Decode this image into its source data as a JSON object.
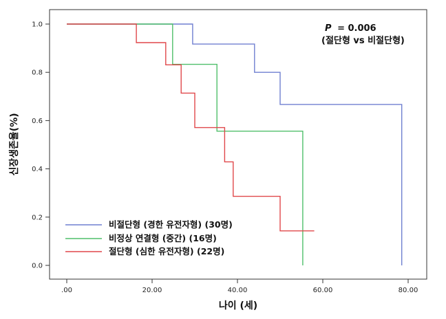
{
  "chart_data": {
    "type": "line",
    "step": true,
    "xlabel": "나이 (세)",
    "ylabel": "신장생존율(%)",
    "xlim": [
      0,
      80
    ],
    "ylim": [
      0,
      1.0
    ],
    "xticks": [
      0,
      20,
      40,
      60,
      80
    ],
    "xtick_labels": [
      ".00",
      "20.00",
      "40.00",
      "60.00",
      "80.00"
    ],
    "yticks": [
      0.0,
      0.2,
      0.4,
      0.6,
      0.8,
      1.0
    ],
    "ytick_labels": [
      "0.0",
      "0.2",
      "0.4",
      "0.6",
      "0.8",
      "1.0"
    ],
    "grid": false,
    "legend_position": "bottom-left",
    "annotation": {
      "p_label": "P",
      "p_value": "= 0.006",
      "comparison": "(절단형 vs 비절단형)"
    },
    "series": [
      {
        "name": "비절단형 (경한 유전자형) (30명)",
        "color": "#6f7fd0",
        "points": [
          [
            0,
            1.0
          ],
          [
            29.5,
            1.0
          ],
          [
            29.5,
            0.917
          ],
          [
            44,
            0.917
          ],
          [
            44,
            0.8
          ],
          [
            50,
            0.8
          ],
          [
            50,
            0.667
          ],
          [
            78.5,
            0.667
          ],
          [
            78.5,
            0.0
          ]
        ]
      },
      {
        "name": "비정상 연결형 (중간) (16명)",
        "color": "#4fbf6a",
        "points": [
          [
            0,
            1.0
          ],
          [
            24.8,
            1.0
          ],
          [
            24.8,
            0.833
          ],
          [
            35.2,
            0.833
          ],
          [
            35.2,
            0.556
          ],
          [
            55.3,
            0.556
          ],
          [
            55.3,
            0.0
          ]
        ]
      },
      {
        "name": "절단형 (심한 유전자형) (22명)",
        "color": "#e0474a",
        "points": [
          [
            0,
            1.0
          ],
          [
            16.3,
            1.0
          ],
          [
            16.3,
            0.923
          ],
          [
            23.2,
            0.923
          ],
          [
            23.2,
            0.831
          ],
          [
            26.8,
            0.831
          ],
          [
            26.8,
            0.714
          ],
          [
            30,
            0.714
          ],
          [
            30,
            0.571
          ],
          [
            37,
            0.571
          ],
          [
            37,
            0.429
          ],
          [
            39,
            0.429
          ],
          [
            39,
            0.286
          ],
          [
            50,
            0.286
          ],
          [
            50,
            0.143
          ],
          [
            58,
            0.143
          ]
        ]
      }
    ]
  }
}
